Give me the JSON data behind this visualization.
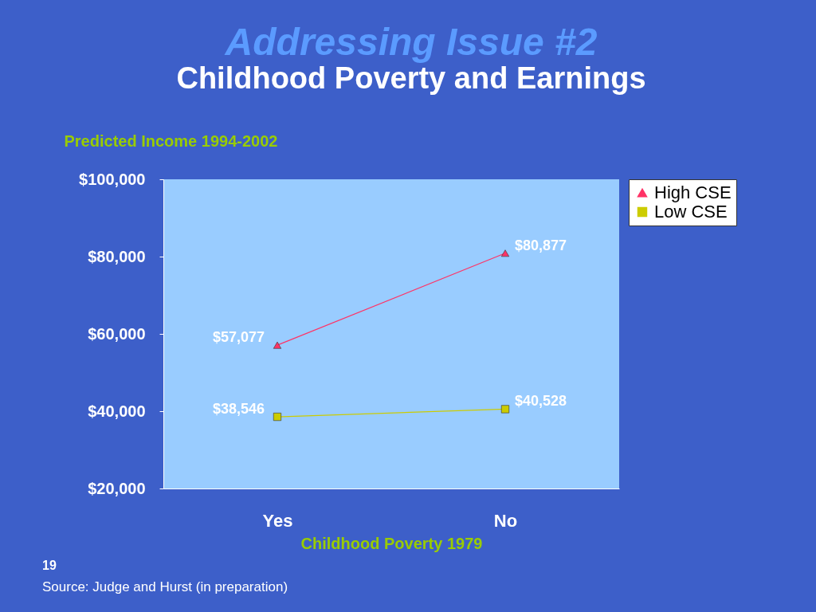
{
  "chart_data": {
    "type": "line",
    "title": "Addressing Issue #2",
    "subtitle": "Childhood Poverty and Earnings",
    "ylabel": "Predicted Income 1994-2002",
    "xlabel": "Childhood Poverty 1979",
    "categories": [
      "Yes",
      "No"
    ],
    "series": [
      {
        "name": "High CSE",
        "color": "#ff3366",
        "marker": "triangle",
        "values": [
          57077,
          80877
        ],
        "value_labels": [
          "$57,077",
          "$80,877"
        ]
      },
      {
        "name": "Low CSE",
        "color": "#cccc00",
        "marker": "square",
        "values": [
          38546,
          40528
        ],
        "value_labels": [
          "$38,546",
          "$40,528"
        ]
      }
    ],
    "ylim": [
      20000,
      100000
    ],
    "yticks": [
      {
        "value": 20000,
        "label": "$20,000"
      },
      {
        "value": 40000,
        "label": "$40,000"
      },
      {
        "value": 60000,
        "label": "$60,000"
      },
      {
        "value": 80000,
        "label": "$80,000"
      },
      {
        "value": 100000,
        "label": "$100,000"
      }
    ],
    "legend": "right",
    "grid": false,
    "annotations": [
      "19",
      "Source: Judge and Hurst (in preparation)"
    ]
  }
}
